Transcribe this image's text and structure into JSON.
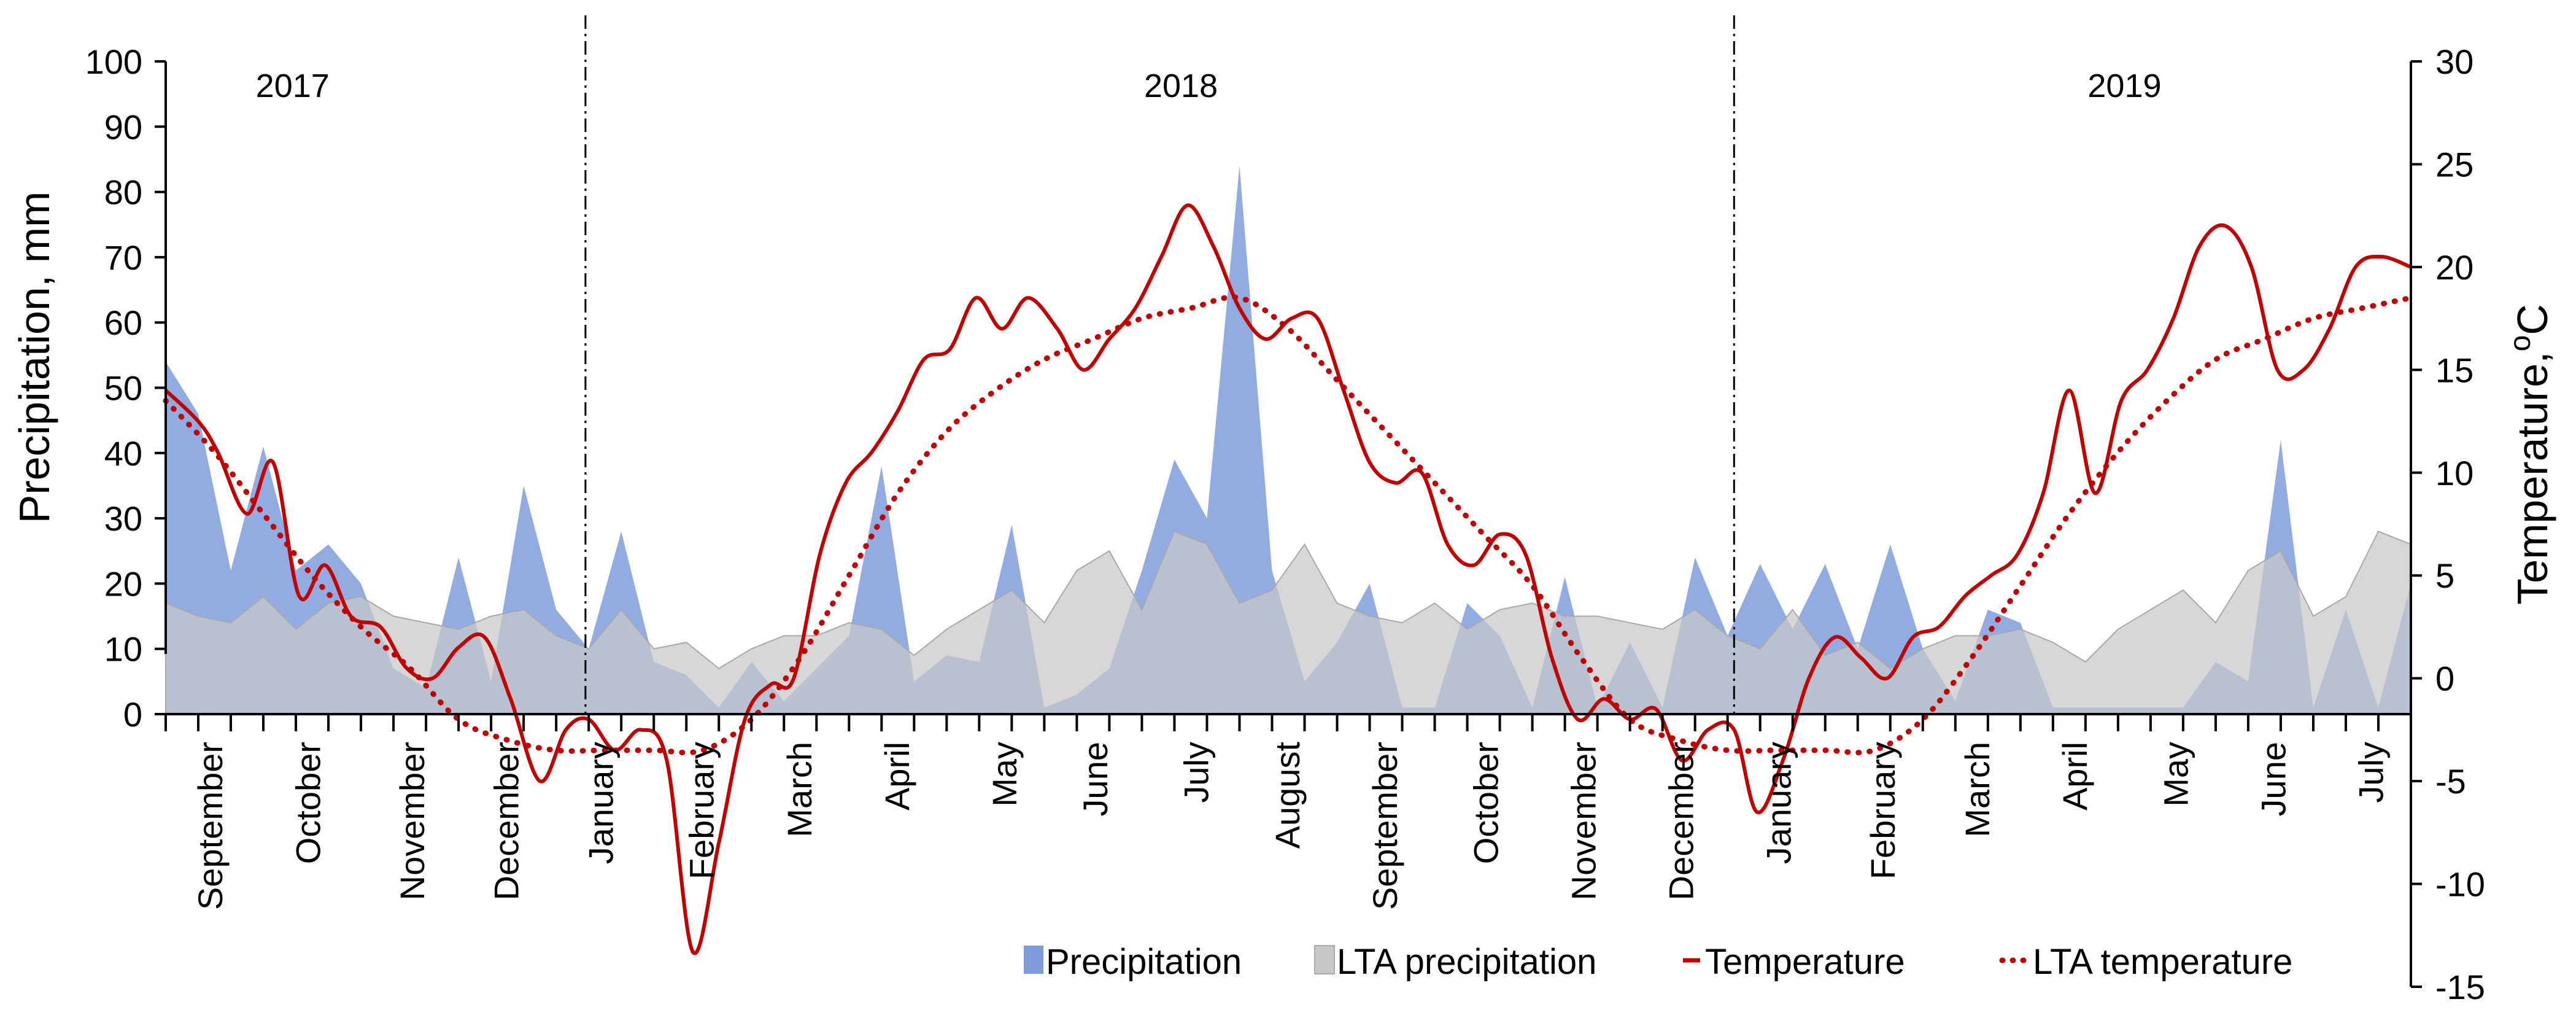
{
  "chart_data": {
    "type": "area",
    "title": "",
    "ylabel": "Precipitation, mm",
    "y2label": "Temperature,",
    "y2label_unit": "oC",
    "ylim": [
      0,
      100
    ],
    "y2lim": [
      -15,
      30
    ],
    "y_ticks": [
      "0",
      "10",
      "20",
      "30",
      "40",
      "50",
      "60",
      "70",
      "80",
      "90",
      "100"
    ],
    "y2_ticks": [
      "-15",
      "-10",
      "-5",
      "0",
      "5",
      "10",
      "15",
      "20",
      "25",
      "30"
    ],
    "x_range": [
      0,
      69
    ],
    "years": [
      {
        "label": "2017",
        "x": 3.9
      },
      {
        "label": "2018",
        "x": 31.2
      },
      {
        "label": "2019",
        "x": 60.2
      }
    ],
    "year_dividers": [
      12.9,
      48.2
    ],
    "months": [
      {
        "label": "September",
        "x": 1.4
      },
      {
        "label": "October",
        "x": 4.4
      },
      {
        "label": "November",
        "x": 7.6
      },
      {
        "label": "December",
        "x": 10.5
      },
      {
        "label": "January",
        "x": 13.4
      },
      {
        "label": "February",
        "x": 16.5
      },
      {
        "label": "March",
        "x": 19.5
      },
      {
        "label": "April",
        "x": 22.5
      },
      {
        "label": "May",
        "x": 25.8
      },
      {
        "label": "June",
        "x": 28.6
      },
      {
        "label": "July",
        "x": 31.7
      },
      {
        "label": "August",
        "x": 34.5
      },
      {
        "label": "September",
        "x": 37.5
      },
      {
        "label": "October",
        "x": 40.6
      },
      {
        "label": "November",
        "x": 43.6
      },
      {
        "label": "December",
        "x": 46.6
      },
      {
        "label": "January",
        "x": 49.6
      },
      {
        "label": "February",
        "x": 52.8
      },
      {
        "label": "March",
        "x": 55.7
      },
      {
        "label": "April",
        "x": 58.7
      },
      {
        "label": "May",
        "x": 61.8
      },
      {
        "label": "June",
        "x": 64.8
      },
      {
        "label": "July",
        "x": 67.8
      }
    ],
    "x_tick_positions": [
      0,
      1,
      2,
      3,
      4,
      5,
      6,
      7,
      8,
      9,
      10,
      11,
      12,
      13,
      14,
      15,
      16,
      17,
      18,
      19,
      20,
      21,
      22,
      23,
      24,
      25,
      26,
      27,
      28,
      29,
      30,
      31,
      32,
      33,
      34,
      35,
      36,
      37,
      38,
      39,
      40,
      41,
      42,
      43,
      44,
      45,
      46,
      47,
      48,
      49,
      50,
      51,
      52,
      53,
      54,
      55,
      56,
      57,
      58,
      59,
      60,
      61,
      62,
      63,
      64,
      65,
      66,
      67,
      68,
      69
    ],
    "series": [
      {
        "name": "Precipitation",
        "axis": "left",
        "kind": "area",
        "color": "#7f9ddc",
        "points": [
          [
            0,
            54
          ],
          [
            1,
            46
          ],
          [
            2,
            22
          ],
          [
            3,
            41
          ],
          [
            4,
            22
          ],
          [
            5,
            26
          ],
          [
            6,
            20
          ],
          [
            7,
            7
          ],
          [
            8,
            4
          ],
          [
            9,
            24
          ],
          [
            10,
            5
          ],
          [
            11,
            35
          ],
          [
            12,
            16
          ],
          [
            13,
            10
          ],
          [
            14,
            28
          ],
          [
            15,
            8
          ],
          [
            16,
            6
          ],
          [
            17,
            1
          ],
          [
            18,
            8
          ],
          [
            19,
            2
          ],
          [
            20,
            7
          ],
          [
            21,
            12
          ],
          [
            22,
            38
          ],
          [
            23,
            5
          ],
          [
            24,
            9
          ],
          [
            25,
            8
          ],
          [
            26,
            29
          ],
          [
            27,
            1
          ],
          [
            28,
            3
          ],
          [
            29,
            7
          ],
          [
            30,
            22
          ],
          [
            31,
            39
          ],
          [
            32,
            30
          ],
          [
            33,
            84
          ],
          [
            34,
            22
          ],
          [
            35,
            5
          ],
          [
            36,
            11
          ],
          [
            37,
            20
          ],
          [
            38,
            1
          ],
          [
            39,
            1
          ],
          [
            40,
            17
          ],
          [
            41,
            12
          ],
          [
            42,
            1
          ],
          [
            43,
            21
          ],
          [
            44,
            1
          ],
          [
            45,
            11
          ],
          [
            46,
            1
          ],
          [
            47,
            24
          ],
          [
            48,
            12
          ],
          [
            49,
            23
          ],
          [
            50,
            13
          ],
          [
            51,
            23
          ],
          [
            52,
            10
          ],
          [
            53,
            26
          ],
          [
            54,
            10
          ],
          [
            55,
            2
          ],
          [
            56,
            16
          ],
          [
            57,
            14
          ],
          [
            58,
            1
          ],
          [
            59,
            1
          ],
          [
            60,
            1
          ],
          [
            61,
            1
          ],
          [
            62,
            1
          ],
          [
            63,
            8
          ],
          [
            64,
            5
          ],
          [
            65,
            42
          ],
          [
            66,
            1
          ],
          [
            67,
            16
          ],
          [
            68,
            1
          ],
          [
            69,
            20
          ]
        ]
      },
      {
        "name": "LTA precipitation",
        "axis": "left",
        "kind": "area",
        "color": "#c7c7c7",
        "points": [
          [
            0,
            17
          ],
          [
            1,
            15
          ],
          [
            2,
            14
          ],
          [
            3,
            18
          ],
          [
            4,
            13
          ],
          [
            5,
            17
          ],
          [
            6,
            18
          ],
          [
            7,
            15
          ],
          [
            8,
            14
          ],
          [
            9,
            13
          ],
          [
            10,
            15
          ],
          [
            11,
            16
          ],
          [
            12,
            12
          ],
          [
            13,
            10
          ],
          [
            14,
            16
          ],
          [
            15,
            10
          ],
          [
            16,
            11
          ],
          [
            17,
            7
          ],
          [
            18,
            10
          ],
          [
            19,
            12
          ],
          [
            20,
            12
          ],
          [
            21,
            14
          ],
          [
            22,
            13
          ],
          [
            23,
            9
          ],
          [
            24,
            13
          ],
          [
            25,
            16
          ],
          [
            26,
            19
          ],
          [
            27,
            14
          ],
          [
            28,
            22
          ],
          [
            29,
            25
          ],
          [
            30,
            16
          ],
          [
            31,
            28
          ],
          [
            32,
            26
          ],
          [
            33,
            17
          ],
          [
            34,
            19
          ],
          [
            35,
            26
          ],
          [
            36,
            17
          ],
          [
            37,
            15
          ],
          [
            38,
            14
          ],
          [
            39,
            17
          ],
          [
            40,
            13
          ],
          [
            41,
            16
          ],
          [
            42,
            17
          ],
          [
            43,
            15
          ],
          [
            44,
            15
          ],
          [
            45,
            14
          ],
          [
            46,
            13
          ],
          [
            47,
            16
          ],
          [
            48,
            12
          ],
          [
            49,
            10
          ],
          [
            50,
            16
          ],
          [
            51,
            9
          ],
          [
            52,
            11
          ],
          [
            53,
            7
          ],
          [
            54,
            10
          ],
          [
            55,
            12
          ],
          [
            56,
            12
          ],
          [
            57,
            13
          ],
          [
            58,
            11
          ],
          [
            59,
            8
          ],
          [
            60,
            13
          ],
          [
            61,
            16
          ],
          [
            62,
            19
          ],
          [
            63,
            14
          ],
          [
            64,
            22
          ],
          [
            65,
            25
          ],
          [
            66,
            15
          ],
          [
            67,
            18
          ],
          [
            68,
            28
          ],
          [
            69,
            26
          ]
        ]
      },
      {
        "name": "Temperature",
        "axis": "right",
        "kind": "line",
        "color": "#c00000",
        "points": [
          [
            0,
            14.0
          ],
          [
            1,
            12.5
          ],
          [
            1.6,
            11.0
          ],
          [
            2.5,
            8.0
          ],
          [
            3.3,
            10.5
          ],
          [
            4.1,
            4.0
          ],
          [
            4.9,
            5.5
          ],
          [
            5.7,
            3.0
          ],
          [
            6.6,
            2.5
          ],
          [
            7.4,
            0.5
          ],
          [
            8.2,
            0.0
          ],
          [
            9.0,
            1.5
          ],
          [
            9.8,
            2.0
          ],
          [
            10.6,
            -1.0
          ],
          [
            11.5,
            -5.0
          ],
          [
            12.3,
            -2.5
          ],
          [
            13.0,
            -2.0
          ],
          [
            13.8,
            -3.5
          ],
          [
            14.6,
            -2.5
          ],
          [
            15.4,
            -4.0
          ],
          [
            16.2,
            -13.3
          ],
          [
            17.0,
            -8.0
          ],
          [
            17.8,
            -2.0
          ],
          [
            18.6,
            -0.3
          ],
          [
            19.3,
            0.0
          ],
          [
            20.1,
            6.0
          ],
          [
            20.9,
            9.5
          ],
          [
            21.7,
            11.0
          ],
          [
            22.5,
            13.0
          ],
          [
            23.3,
            15.5
          ],
          [
            24.1,
            16.0
          ],
          [
            24.9,
            18.5
          ],
          [
            25.7,
            17.0
          ],
          [
            26.5,
            18.5
          ],
          [
            27.4,
            17.0
          ],
          [
            28.2,
            15.0
          ],
          [
            29.0,
            16.5
          ],
          [
            29.8,
            18.0
          ],
          [
            30.6,
            20.5
          ],
          [
            31.4,
            23.0
          ],
          [
            32.2,
            21.0
          ],
          [
            33.0,
            18.0
          ],
          [
            33.8,
            16.5
          ],
          [
            34.6,
            17.5
          ],
          [
            35.4,
            17.5
          ],
          [
            36.2,
            14.0
          ],
          [
            37.0,
            10.5
          ],
          [
            37.8,
            9.5
          ],
          [
            38.6,
            10.0
          ],
          [
            39.4,
            6.5
          ],
          [
            40.2,
            5.5
          ],
          [
            41.0,
            7.0
          ],
          [
            41.8,
            6.0
          ],
          [
            42.6,
            1.0
          ],
          [
            43.4,
            -2.0
          ],
          [
            44.2,
            -1.0
          ],
          [
            45.0,
            -2.0
          ],
          [
            45.8,
            -1.5
          ],
          [
            46.6,
            -4.0
          ],
          [
            47.4,
            -2.5
          ],
          [
            48.2,
            -2.5
          ],
          [
            48.9,
            -6.5
          ],
          [
            49.7,
            -4.0
          ],
          [
            50.5,
            0.0
          ],
          [
            51.3,
            2.0
          ],
          [
            52.1,
            1.0
          ],
          [
            52.9,
            0.0
          ],
          [
            53.7,
            2.0
          ],
          [
            54.5,
            2.5
          ],
          [
            55.3,
            4.0
          ],
          [
            56.1,
            5.0
          ],
          [
            56.9,
            6.0
          ],
          [
            57.7,
            9.0
          ],
          [
            58.5,
            14.0
          ],
          [
            59.3,
            9.0
          ],
          [
            60.1,
            13.5
          ],
          [
            60.9,
            15.0
          ],
          [
            61.7,
            17.5
          ],
          [
            62.5,
            21.0
          ],
          [
            63.3,
            22.0
          ],
          [
            64.1,
            20.0
          ],
          [
            64.9,
            15.0
          ],
          [
            65.7,
            15.0
          ],
          [
            66.5,
            17.0
          ],
          [
            67.3,
            20.0
          ],
          [
            68.1,
            20.5
          ],
          [
            69.0,
            20.0
          ]
        ]
      },
      {
        "name": "LTA temperature",
        "axis": "right",
        "kind": "line-dotted",
        "color": "#c00000",
        "points": [
          [
            0,
            13.5
          ],
          [
            1.5,
            11.0
          ],
          [
            3,
            8.0
          ],
          [
            4.5,
            5.0
          ],
          [
            6,
            2.5
          ],
          [
            7.5,
            0.5
          ],
          [
            9,
            -2.0
          ],
          [
            10.5,
            -3.0
          ],
          [
            12,
            -3.5
          ],
          [
            13.5,
            -3.5
          ],
          [
            15,
            -3.5
          ],
          [
            16.5,
            -3.5
          ],
          [
            18,
            -2.0
          ],
          [
            19.5,
            1.0
          ],
          [
            21,
            5.0
          ],
          [
            22.5,
            9.0
          ],
          [
            24,
            12.0
          ],
          [
            25.5,
            14.0
          ],
          [
            27,
            15.5
          ],
          [
            28.5,
            16.5
          ],
          [
            30,
            17.5
          ],
          [
            31.5,
            18.0
          ],
          [
            33,
            18.5
          ],
          [
            34.5,
            17.0
          ],
          [
            36,
            14.5
          ],
          [
            37.5,
            12.0
          ],
          [
            39,
            9.5
          ],
          [
            40.5,
            7.0
          ],
          [
            42,
            4.5
          ],
          [
            43.5,
            1.0
          ],
          [
            45,
            -2.0
          ],
          [
            46.5,
            -3.0
          ],
          [
            48,
            -3.5
          ],
          [
            49.5,
            -3.5
          ],
          [
            51,
            -3.5
          ],
          [
            52.5,
            -3.5
          ],
          [
            54,
            -2.0
          ],
          [
            55.5,
            1.0
          ],
          [
            57,
            4.5
          ],
          [
            58.5,
            8.0
          ],
          [
            60,
            11.0
          ],
          [
            61.5,
            13.5
          ],
          [
            63,
            15.5
          ],
          [
            64.5,
            16.5
          ],
          [
            66,
            17.5
          ],
          [
            67.5,
            18.0
          ],
          [
            69,
            18.5
          ]
        ]
      }
    ],
    "legend": {
      "placement": "bottom-right",
      "items": [
        {
          "label": "Precipitation",
          "marker": "area",
          "color": "#7f9ddc"
        },
        {
          "label": "LTA precipitation",
          "marker": "area",
          "color": "#c7c7c7"
        },
        {
          "label": "Temperature",
          "marker": "solid-line",
          "color": "#c00000"
        },
        {
          "label": "LTA temperature",
          "marker": "dotted-line",
          "color": "#c00000"
        }
      ]
    }
  }
}
